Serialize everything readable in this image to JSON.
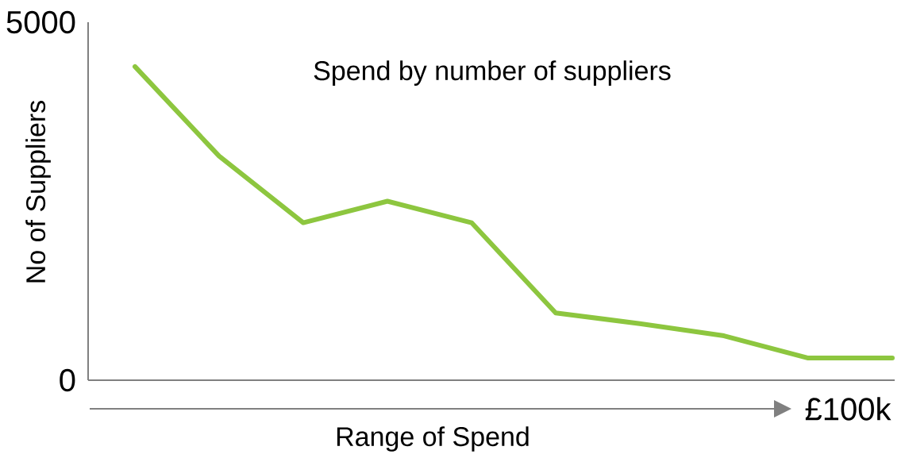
{
  "chart_data": {
    "type": "line",
    "title": "Spend by number of suppliers",
    "xlabel": "Range of Spend",
    "ylabel": "No of Suppliers",
    "categories": [
      null,
      null,
      null,
      null,
      null,
      null,
      null,
      null,
      null,
      null
    ],
    "values": [
      4380,
      3130,
      2200,
      2500,
      2200,
      940,
      790,
      620,
      310,
      310
    ],
    "color": "#8dc63f",
    "ylim": [
      0,
      5000
    ],
    "yticks": [
      0,
      5000
    ],
    "tick_labels": "y",
    "annotations": [
      "£100k"
    ]
  }
}
